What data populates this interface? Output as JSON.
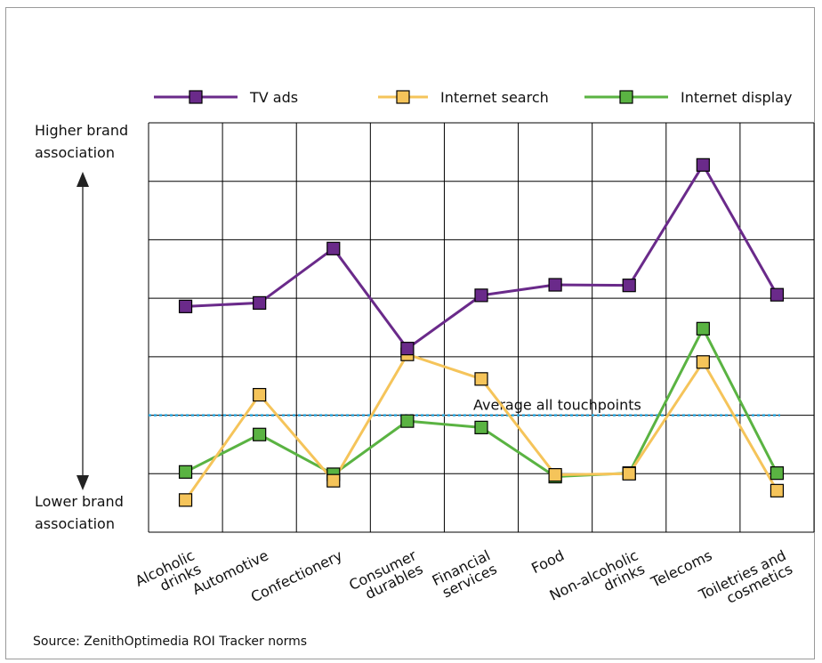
{
  "chart_data": {
    "type": "line",
    "categories": [
      [
        "Alcoholic",
        "drinks"
      ],
      [
        "Automotive"
      ],
      [
        "Confectionery"
      ],
      [
        "Consumer",
        "durables"
      ],
      [
        "Financial",
        "services"
      ],
      [
        "Food"
      ],
      [
        "Non-alcoholic",
        "drinks"
      ],
      [
        "Telecoms"
      ],
      [
        "Toiletries and",
        "cosmetics"
      ]
    ],
    "series": [
      {
        "name": "TV ads",
        "color": "#6a2a8a",
        "values": [
          3.86,
          3.92,
          4.85,
          3.14,
          4.05,
          4.23,
          4.22,
          6.28,
          4.06
        ]
      },
      {
        "name": "Internet search",
        "color": "#f5c45a",
        "values": [
          0.55,
          2.35,
          0.88,
          3.04,
          2.62,
          0.98,
          1.0,
          2.91,
          0.71
        ]
      },
      {
        "name": "Internet display",
        "color": "#5ab342",
        "values": [
          1.03,
          1.67,
          0.99,
          1.9,
          1.79,
          0.95,
          1.01,
          3.48,
          1.01
        ]
      }
    ],
    "reference_line": {
      "label": "Average all touchpoints",
      "value": 2.0,
      "color": "#2aa6dd"
    },
    "y_label_top": [
      "Higher brand",
      "association"
    ],
    "y_label_bottom": [
      "Lower brand",
      "association"
    ],
    "ylim": [
      0,
      7
    ],
    "y_tick_labels": "none",
    "grid": true,
    "legend_position": "top",
    "source": "Source: ZenithOptimedia ROI Tracker norms"
  }
}
